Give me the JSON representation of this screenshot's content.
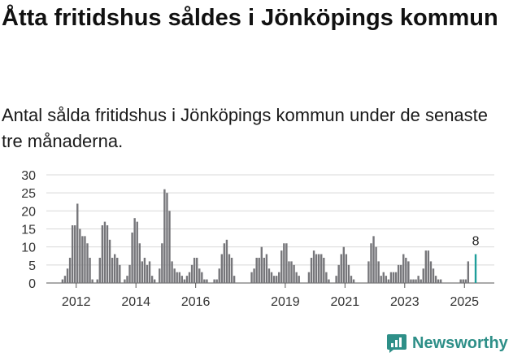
{
  "title": "Åtta fritidshus såldes i Jönköpings kommun",
  "subtitle": "Antal sålda fritidshus i Jönköpings kommun under de senaste tre månaderna.",
  "brand": "Newsworthy",
  "colors": {
    "bar": "#76767a",
    "highlight": "#1f9e9a",
    "grid": "#d8d8d8",
    "brand": "#2e8f88"
  },
  "chart_data": {
    "type": "bar",
    "title": "",
    "xlabel": "",
    "ylabel": "",
    "ylim": [
      0,
      30
    ],
    "yticks": [
      0,
      5,
      10,
      15,
      20,
      25,
      30
    ],
    "xticks": [
      "2012",
      "2014",
      "2016",
      "2019",
      "2021",
      "2023",
      "2025"
    ],
    "grid": true,
    "x_start": "2011-01",
    "x_end": "2025-12",
    "annotation": {
      "text": "8",
      "x": "2025-05",
      "value": 8
    },
    "series": [
      {
        "values": [
          {
            "x": "2011-07",
            "y": 1
          },
          {
            "x": "2011-08",
            "y": 2
          },
          {
            "x": "2011-09",
            "y": 4
          },
          {
            "x": "2011-10",
            "y": 7
          },
          {
            "x": "2011-11",
            "y": 16
          },
          {
            "x": "2011-12",
            "y": 16
          },
          {
            "x": "2012-01",
            "y": 22
          },
          {
            "x": "2012-02",
            "y": 15
          },
          {
            "x": "2012-03",
            "y": 13
          },
          {
            "x": "2012-04",
            "y": 13
          },
          {
            "x": "2012-05",
            "y": 11
          },
          {
            "x": "2012-06",
            "y": 7
          },
          {
            "x": "2012-07",
            "y": 1
          },
          {
            "x": "2012-09",
            "y": 1
          },
          {
            "x": "2012-10",
            "y": 7
          },
          {
            "x": "2012-11",
            "y": 16
          },
          {
            "x": "2012-12",
            "y": 17
          },
          {
            "x": "2013-01",
            "y": 16
          },
          {
            "x": "2013-02",
            "y": 12
          },
          {
            "x": "2013-03",
            "y": 7
          },
          {
            "x": "2013-04",
            "y": 8
          },
          {
            "x": "2013-05",
            "y": 7
          },
          {
            "x": "2013-06",
            "y": 5
          },
          {
            "x": "2013-08",
            "y": 1
          },
          {
            "x": "2013-09",
            "y": 2
          },
          {
            "x": "2013-10",
            "y": 5
          },
          {
            "x": "2013-11",
            "y": 14
          },
          {
            "x": "2013-12",
            "y": 18
          },
          {
            "x": "2014-01",
            "y": 17
          },
          {
            "x": "2014-02",
            "y": 11
          },
          {
            "x": "2014-03",
            "y": 6
          },
          {
            "x": "2014-04",
            "y": 7
          },
          {
            "x": "2014-05",
            "y": 5
          },
          {
            "x": "2014-06",
            "y": 6
          },
          {
            "x": "2014-07",
            "y": 2
          },
          {
            "x": "2014-08",
            "y": 1
          },
          {
            "x": "2014-10",
            "y": 4
          },
          {
            "x": "2014-11",
            "y": 11
          },
          {
            "x": "2014-12",
            "y": 26
          },
          {
            "x": "2015-01",
            "y": 25
          },
          {
            "x": "2015-02",
            "y": 20
          },
          {
            "x": "2015-03",
            "y": 6
          },
          {
            "x": "2015-04",
            "y": 4
          },
          {
            "x": "2015-05",
            "y": 3
          },
          {
            "x": "2015-06",
            "y": 3
          },
          {
            "x": "2015-07",
            "y": 2
          },
          {
            "x": "2015-08",
            "y": 1
          },
          {
            "x": "2015-09",
            "y": 2
          },
          {
            "x": "2015-10",
            "y": 3
          },
          {
            "x": "2015-11",
            "y": 5
          },
          {
            "x": "2015-12",
            "y": 7
          },
          {
            "x": "2016-01",
            "y": 7
          },
          {
            "x": "2016-02",
            "y": 4
          },
          {
            "x": "2016-03",
            "y": 3
          },
          {
            "x": "2016-04",
            "y": 1
          },
          {
            "x": "2016-05",
            "y": 1
          },
          {
            "x": "2016-08",
            "y": 1
          },
          {
            "x": "2016-09",
            "y": 1
          },
          {
            "x": "2016-10",
            "y": 4
          },
          {
            "x": "2016-11",
            "y": 8
          },
          {
            "x": "2016-12",
            "y": 11
          },
          {
            "x": "2017-01",
            "y": 12
          },
          {
            "x": "2017-02",
            "y": 8
          },
          {
            "x": "2017-03",
            "y": 7
          },
          {
            "x": "2017-04",
            "y": 2
          },
          {
            "x": "2017-11",
            "y": 3
          },
          {
            "x": "2017-12",
            "y": 4
          },
          {
            "x": "2018-01",
            "y": 7
          },
          {
            "x": "2018-02",
            "y": 7
          },
          {
            "x": "2018-03",
            "y": 10
          },
          {
            "x": "2018-04",
            "y": 7
          },
          {
            "x": "2018-05",
            "y": 8
          },
          {
            "x": "2018-06",
            "y": 4
          },
          {
            "x": "2018-07",
            "y": 3
          },
          {
            "x": "2018-08",
            "y": 2
          },
          {
            "x": "2018-09",
            "y": 2
          },
          {
            "x": "2018-10",
            "y": 3
          },
          {
            "x": "2018-11",
            "y": 9
          },
          {
            "x": "2018-12",
            "y": 11
          },
          {
            "x": "2019-01",
            "y": 11
          },
          {
            "x": "2019-02",
            "y": 6
          },
          {
            "x": "2019-03",
            "y": 6
          },
          {
            "x": "2019-04",
            "y": 5
          },
          {
            "x": "2019-05",
            "y": 3
          },
          {
            "x": "2019-06",
            "y": 2
          },
          {
            "x": "2019-10",
            "y": 3
          },
          {
            "x": "2019-11",
            "y": 7
          },
          {
            "x": "2019-12",
            "y": 9
          },
          {
            "x": "2020-01",
            "y": 8
          },
          {
            "x": "2020-02",
            "y": 8
          },
          {
            "x": "2020-03",
            "y": 8
          },
          {
            "x": "2020-04",
            "y": 7
          },
          {
            "x": "2020-05",
            "y": 3
          },
          {
            "x": "2020-06",
            "y": 1
          },
          {
            "x": "2020-09",
            "y": 2
          },
          {
            "x": "2020-10",
            "y": 5
          },
          {
            "x": "2020-11",
            "y": 8
          },
          {
            "x": "2020-12",
            "y": 10
          },
          {
            "x": "2021-01",
            "y": 8
          },
          {
            "x": "2021-02",
            "y": 5
          },
          {
            "x": "2021-03",
            "y": 2
          },
          {
            "x": "2021-04",
            "y": 1
          },
          {
            "x": "2021-10",
            "y": 6
          },
          {
            "x": "2021-11",
            "y": 11
          },
          {
            "x": "2021-12",
            "y": 13
          },
          {
            "x": "2022-01",
            "y": 10
          },
          {
            "x": "2022-02",
            "y": 6
          },
          {
            "x": "2022-03",
            "y": 2
          },
          {
            "x": "2022-04",
            "y": 3
          },
          {
            "x": "2022-05",
            "y": 2
          },
          {
            "x": "2022-06",
            "y": 1
          },
          {
            "x": "2022-07",
            "y": 3
          },
          {
            "x": "2022-08",
            "y": 3
          },
          {
            "x": "2022-09",
            "y": 3
          },
          {
            "x": "2022-10",
            "y": 5
          },
          {
            "x": "2022-11",
            "y": 5
          },
          {
            "x": "2022-12",
            "y": 8
          },
          {
            "x": "2023-01",
            "y": 7
          },
          {
            "x": "2023-02",
            "y": 6
          },
          {
            "x": "2023-03",
            "y": 1
          },
          {
            "x": "2023-04",
            "y": 1
          },
          {
            "x": "2023-05",
            "y": 1
          },
          {
            "x": "2023-06",
            "y": 2
          },
          {
            "x": "2023-07",
            "y": 1
          },
          {
            "x": "2023-08",
            "y": 4
          },
          {
            "x": "2023-09",
            "y": 9
          },
          {
            "x": "2023-10",
            "y": 9
          },
          {
            "x": "2023-11",
            "y": 6
          },
          {
            "x": "2023-12",
            "y": 4
          },
          {
            "x": "2024-01",
            "y": 2
          },
          {
            "x": "2024-02",
            "y": 1
          },
          {
            "x": "2024-03",
            "y": 1
          },
          {
            "x": "2024-11",
            "y": 1
          },
          {
            "x": "2024-12",
            "y": 1
          },
          {
            "x": "2025-01",
            "y": 1
          },
          {
            "x": "2025-02",
            "y": 6
          },
          {
            "x": "2025-05",
            "y": 8,
            "highlight": true
          }
        ]
      }
    ]
  }
}
